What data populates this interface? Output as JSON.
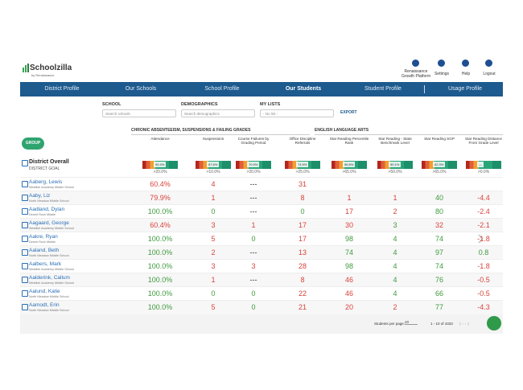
{
  "header": {
    "brand": "Schoolzilla",
    "tagline": "by Renaissance",
    "links": [
      "Renaissance Growth Platform",
      "Settings",
      "Help",
      "Logout"
    ]
  },
  "nav": {
    "items": [
      "District Profile",
      "Our Schools",
      "School Profile",
      "Our Students",
      "Student Profile",
      "Usage Profile"
    ],
    "active": 3
  },
  "filters": [
    {
      "label": "SCHOOL",
      "placeholder": "Search schools"
    },
    {
      "label": "DEMOGRAPHICS",
      "placeholder": "Search demographics"
    },
    {
      "label": "MY LISTS",
      "placeholder": "- No list -"
    }
  ],
  "export": "EXPORT",
  "group_button": "GROUP",
  "column_groups": [
    "CHRONIC ABSENTEEISM, SUSPENSIONS & FAILING GRADES",
    "ENGLISH LANGUAGE ARTS"
  ],
  "columns": [
    "Attendance",
    "Suspensions",
    "Course Failures by Grading Period",
    "Office Discipline Referrals",
    "Star Reading Percentile Rank",
    "Star Reading - State Benchmark Level",
    "Star Reading SGP",
    "Star Reading Distance From Grade Level"
  ],
  "district": {
    "name": "District Overall",
    "goal_label": "DISTRICT GOAL",
    "bars": [
      "90.4%",
      "87.6%",
      "70.9%",
      "74.5%",
      "56.8%",
      "50.1%",
      "62.3%",
      "—"
    ],
    "goals": [
      ">20.0%",
      ">10.0%",
      ">20.0%",
      ">25.0%",
      ">65.0%",
      ">50.0%",
      ">65.0%",
      ">0.0%"
    ]
  },
  "students": [
    {
      "name": "Aaberg, Lewis",
      "school": "Westlish Academy Middle School",
      "cells": [
        {
          "text": "60.4%",
          "color": "#d9433c"
        },
        {
          "text": "4",
          "color": "#d9433c"
        },
        {
          "text": "---",
          "color": "#333333"
        },
        {
          "text": "31",
          "color": "#d9433c"
        }
      ]
    },
    {
      "name": "Aaby, Liz",
      "school": "North Meadow Middle School",
      "cells": [
        {
          "text": "79.9%",
          "color": "#d9433c"
        },
        {
          "text": "1",
          "color": "#d9433c"
        },
        {
          "text": "---",
          "color": "#333333"
        },
        {
          "text": "8",
          "color": "#d9433c"
        },
        {
          "text": "1",
          "color": "#d9433c"
        },
        {
          "text": "1",
          "color": "#d9433c"
        },
        {
          "text": "40",
          "color": "#3f9a3f"
        },
        {
          "text": "-4.4",
          "color": "#d9433c"
        }
      ]
    },
    {
      "name": "Aadland, Dylan",
      "school": "Desert Rock Middle",
      "cells": [
        {
          "text": "100.0%",
          "color": "#3f9a3f"
        },
        {
          "text": "0",
          "color": "#3f9a3f"
        },
        {
          "text": "---",
          "color": "#333333"
        },
        {
          "text": "0",
          "color": "#3f9a3f"
        },
        {
          "text": "17",
          "color": "#d9433c"
        },
        {
          "text": "2",
          "color": "#d9433c"
        },
        {
          "text": "80",
          "color": "#3f9a3f"
        },
        {
          "text": "-2.4",
          "color": "#d9433c"
        }
      ]
    },
    {
      "name": "Aagaard, George",
      "school": "Westlish Academy Middle School",
      "cells": [
        {
          "text": "60.4%",
          "color": "#d9433c"
        },
        {
          "text": "3",
          "color": "#d9433c"
        },
        {
          "text": "1",
          "color": "#d9433c"
        },
        {
          "text": "17",
          "color": "#d9433c"
        },
        {
          "text": "30",
          "color": "#d9433c"
        },
        {
          "text": "3",
          "color": "#3f9a3f"
        },
        {
          "text": "32",
          "color": "#d9433c"
        },
        {
          "text": "-2.1",
          "color": "#d9433c"
        }
      ]
    },
    {
      "name": "Aakre, Ryan",
      "school": "Desert Rock Middle",
      "cells": [
        {
          "text": "100.0%",
          "color": "#3f9a3f"
        },
        {
          "text": "5",
          "color": "#d9433c"
        },
        {
          "text": "0",
          "color": "#3f9a3f"
        },
        {
          "text": "17",
          "color": "#d9433c"
        },
        {
          "text": "98",
          "color": "#3f9a3f"
        },
        {
          "text": "4",
          "color": "#3f9a3f"
        },
        {
          "text": "74",
          "color": "#3f9a3f"
        },
        {
          "text": "-1.8",
          "color": "#d9433c"
        }
      ]
    },
    {
      "name": "Aaland, Beth",
      "school": "North Meadow Middle School",
      "cells": [
        {
          "text": "100.0%",
          "color": "#3f9a3f"
        },
        {
          "text": "2",
          "color": "#d9433c"
        },
        {
          "text": "---",
          "color": "#333333"
        },
        {
          "text": "13",
          "color": "#d9433c"
        },
        {
          "text": "74",
          "color": "#3f9a3f"
        },
        {
          "text": "4",
          "color": "#3f9a3f"
        },
        {
          "text": "97",
          "color": "#3f9a3f"
        },
        {
          "text": "0.8",
          "color": "#3f9a3f"
        }
      ]
    },
    {
      "name": "Aalbers, Mark",
      "school": "Westlish Academy Middle School",
      "cells": [
        {
          "text": "100.0%",
          "color": "#3f9a3f"
        },
        {
          "text": "3",
          "color": "#d9433c"
        },
        {
          "text": "3",
          "color": "#d9433c"
        },
        {
          "text": "28",
          "color": "#d9433c"
        },
        {
          "text": "98",
          "color": "#3f9a3f"
        },
        {
          "text": "4",
          "color": "#3f9a3f"
        },
        {
          "text": "74",
          "color": "#3f9a3f"
        },
        {
          "text": "-1.8",
          "color": "#d9433c"
        }
      ]
    },
    {
      "name": "Aalderink, Callum",
      "school": "Westlish Academy Middle School",
      "cells": [
        {
          "text": "100.0%",
          "color": "#3f9a3f"
        },
        {
          "text": "1",
          "color": "#d9433c"
        },
        {
          "text": "---",
          "color": "#333333"
        },
        {
          "text": "8",
          "color": "#d9433c"
        },
        {
          "text": "46",
          "color": "#d9433c"
        },
        {
          "text": "4",
          "color": "#3f9a3f"
        },
        {
          "text": "76",
          "color": "#3f9a3f"
        },
        {
          "text": "-0.5",
          "color": "#d9433c"
        }
      ]
    },
    {
      "name": "Aalund, Katie",
      "school": "North Meadow Middle School",
      "cells": [
        {
          "text": "100.0%",
          "color": "#3f9a3f"
        },
        {
          "text": "0",
          "color": "#3f9a3f"
        },
        {
          "text": "0",
          "color": "#3f9a3f"
        },
        {
          "text": "22",
          "color": "#d9433c"
        },
        {
          "text": "46",
          "color": "#d9433c"
        },
        {
          "text": "4",
          "color": "#3f9a3f"
        },
        {
          "text": "66",
          "color": "#3f9a3f"
        },
        {
          "text": "-0.5",
          "color": "#d9433c"
        }
      ]
    },
    {
      "name": "Aamodt, Erin",
      "school": "North Meadow Middle School",
      "cells": [
        {
          "text": "100.0%",
          "color": "#3f9a3f"
        },
        {
          "text": "5",
          "color": "#d9433c"
        },
        {
          "text": "0",
          "color": "#3f9a3f"
        },
        {
          "text": "21",
          "color": "#d9433c"
        },
        {
          "text": "20",
          "color": "#d9433c"
        },
        {
          "text": "2",
          "color": "#d9433c"
        },
        {
          "text": "77",
          "color": "#3f9a3f"
        },
        {
          "text": "-4.3",
          "color": "#d9433c"
        }
      ]
    }
  ],
  "footer": {
    "per_page_label": "Students per page:",
    "per_page": "10",
    "range": "1 - 10 of 4333"
  }
}
